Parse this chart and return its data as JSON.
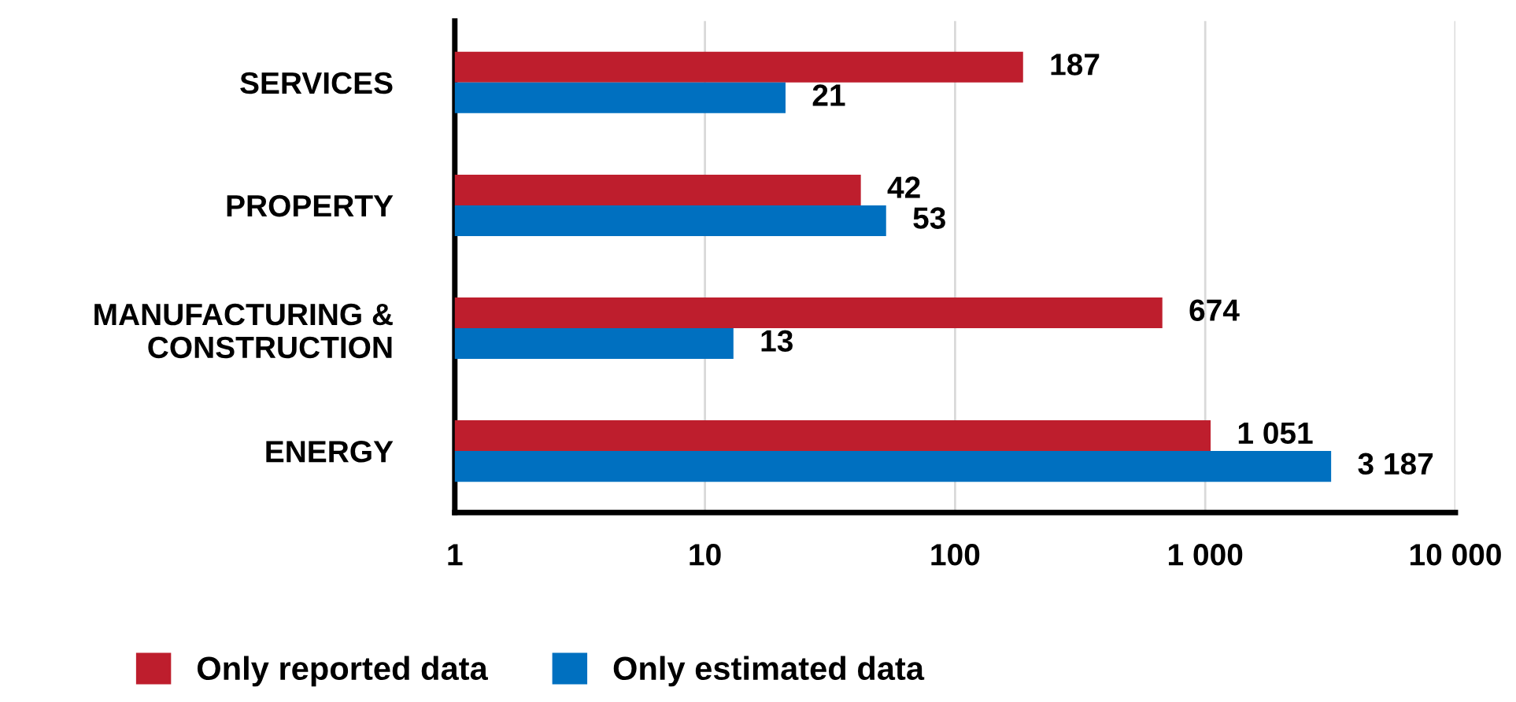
{
  "chart_data": {
    "type": "bar",
    "orientation": "horizontal",
    "log": "x",
    "categories": [
      "SERVICES",
      "PROPERTY",
      "MANUFACTURING &\nCONSTRUCTION",
      "ENERGY"
    ],
    "series": [
      {
        "name": "Only reported data",
        "color": "#be1e2d",
        "values": [
          187,
          42,
          674,
          1051
        ],
        "value_labels": [
          "187",
          "42",
          "674",
          "1 051"
        ]
      },
      {
        "name": "Only estimated data",
        "color": "#0070c0",
        "values": [
          21,
          53,
          13,
          3187
        ],
        "value_labels": [
          "21",
          "53",
          "13",
          "3 187"
        ]
      }
    ],
    "xlim": [
      1,
      10000
    ],
    "xticks": [
      1,
      10,
      100,
      {
        "value": 1000,
        "label": "1 000"
      },
      {
        "value": 10000,
        "label": "10 000"
      }
    ],
    "grid": "x",
    "legend": "bottom"
  }
}
